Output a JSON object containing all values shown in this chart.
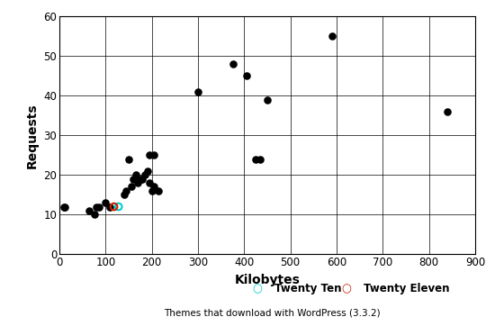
{
  "black_points": [
    [
      10,
      12
    ],
    [
      12,
      12
    ],
    [
      65,
      11
    ],
    [
      75,
      10
    ],
    [
      80,
      12
    ],
    [
      85,
      12
    ],
    [
      100,
      13
    ],
    [
      110,
      12
    ],
    [
      140,
      15
    ],
    [
      145,
      16
    ],
    [
      155,
      17
    ],
    [
      160,
      19
    ],
    [
      165,
      20
    ],
    [
      170,
      18
    ],
    [
      175,
      19
    ],
    [
      180,
      19
    ],
    [
      185,
      20
    ],
    [
      190,
      21
    ],
    [
      195,
      18
    ],
    [
      200,
      16
    ],
    [
      205,
      17
    ],
    [
      215,
      16
    ],
    [
      150,
      24
    ],
    [
      195,
      25
    ],
    [
      205,
      25
    ],
    [
      300,
      41
    ],
    [
      375,
      48
    ],
    [
      405,
      45
    ],
    [
      425,
      24
    ],
    [
      435,
      24
    ],
    [
      450,
      39
    ],
    [
      590,
      55
    ],
    [
      840,
      36
    ]
  ],
  "twenty_ten": [
    128,
    12
  ],
  "twenty_eleven": [
    118,
    12
  ],
  "twenty_ten_color": "#00cccc",
  "twenty_eleven_color": "#cc2200",
  "xlabel": "Kilobytes",
  "ylabel": "Requests",
  "subtitle": "Themes that download with WordPress (3.3.2)",
  "legend_twenty_ten": "Twenty Ten",
  "legend_twenty_eleven": "Twenty Eleven",
  "xlim": [
    0,
    900
  ],
  "ylim": [
    0,
    60
  ],
  "xticks": [
    0,
    100,
    200,
    300,
    400,
    500,
    600,
    700,
    800,
    900
  ],
  "yticks": [
    0,
    10,
    20,
    30,
    40,
    50,
    60
  ],
  "marker_size": 38,
  "open_marker_size": 30,
  "bg_color": "#ffffff"
}
